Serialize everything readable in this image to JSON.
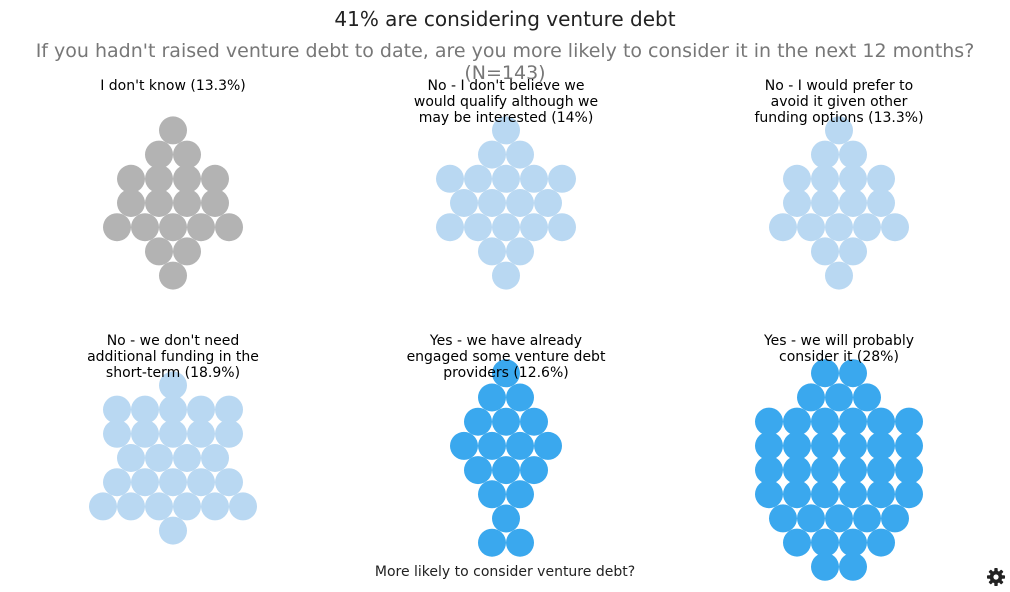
{
  "header": {
    "title": "41% are considering venture debt",
    "subtitle": "If you hadn't raised venture debt to date, are you more likely to consider it in the next 12 months? (N=143)"
  },
  "legend": {
    "title": "More likely to consider venture debt?"
  },
  "toolbar": {
    "settings_icon": "gear-icon"
  },
  "colors": {
    "dont_know": "#b3b3b3",
    "no": "#b9d8f2",
    "yes": "#3aa8ee"
  },
  "chart_data": {
    "type": "proportional-dot-plot",
    "title": "41% are considering venture debt",
    "subtitle": "If you hadn't raised venture debt to date, are you more likely to consider it in the next 12 months? (N=143)",
    "legend_title": "More likely to consider venture debt?",
    "n": 143,
    "categories": [
      {
        "label_lines": [
          "I don't know (13.3%)"
        ],
        "percent": 13.3,
        "group": "dont_know",
        "dots": 19
      },
      {
        "label_lines": [
          "No - I don't believe we",
          "would qualify although we",
          "may be interested (14%)"
        ],
        "percent": 14,
        "group": "no",
        "dots": 20
      },
      {
        "label_lines": [
          "No - I would prefer to",
          "avoid it given other",
          "funding options (13.3%)"
        ],
        "percent": 13.3,
        "group": "no",
        "dots": 19
      },
      {
        "label_lines": [
          "No - we don't need",
          "additional funding in the",
          "short-term (18.9%)"
        ],
        "percent": 18.9,
        "group": "no",
        "dots": 27
      },
      {
        "label_lines": [
          "Yes - we have already",
          "engaged some venture debt",
          "providers (12.6%)"
        ],
        "percent": 12.6,
        "group": "yes",
        "dots": 18
      },
      {
        "label_lines": [
          "Yes - we will probably",
          "consider it (28%)"
        ],
        "percent": 28,
        "group": "yes",
        "dots": 40
      }
    ]
  }
}
